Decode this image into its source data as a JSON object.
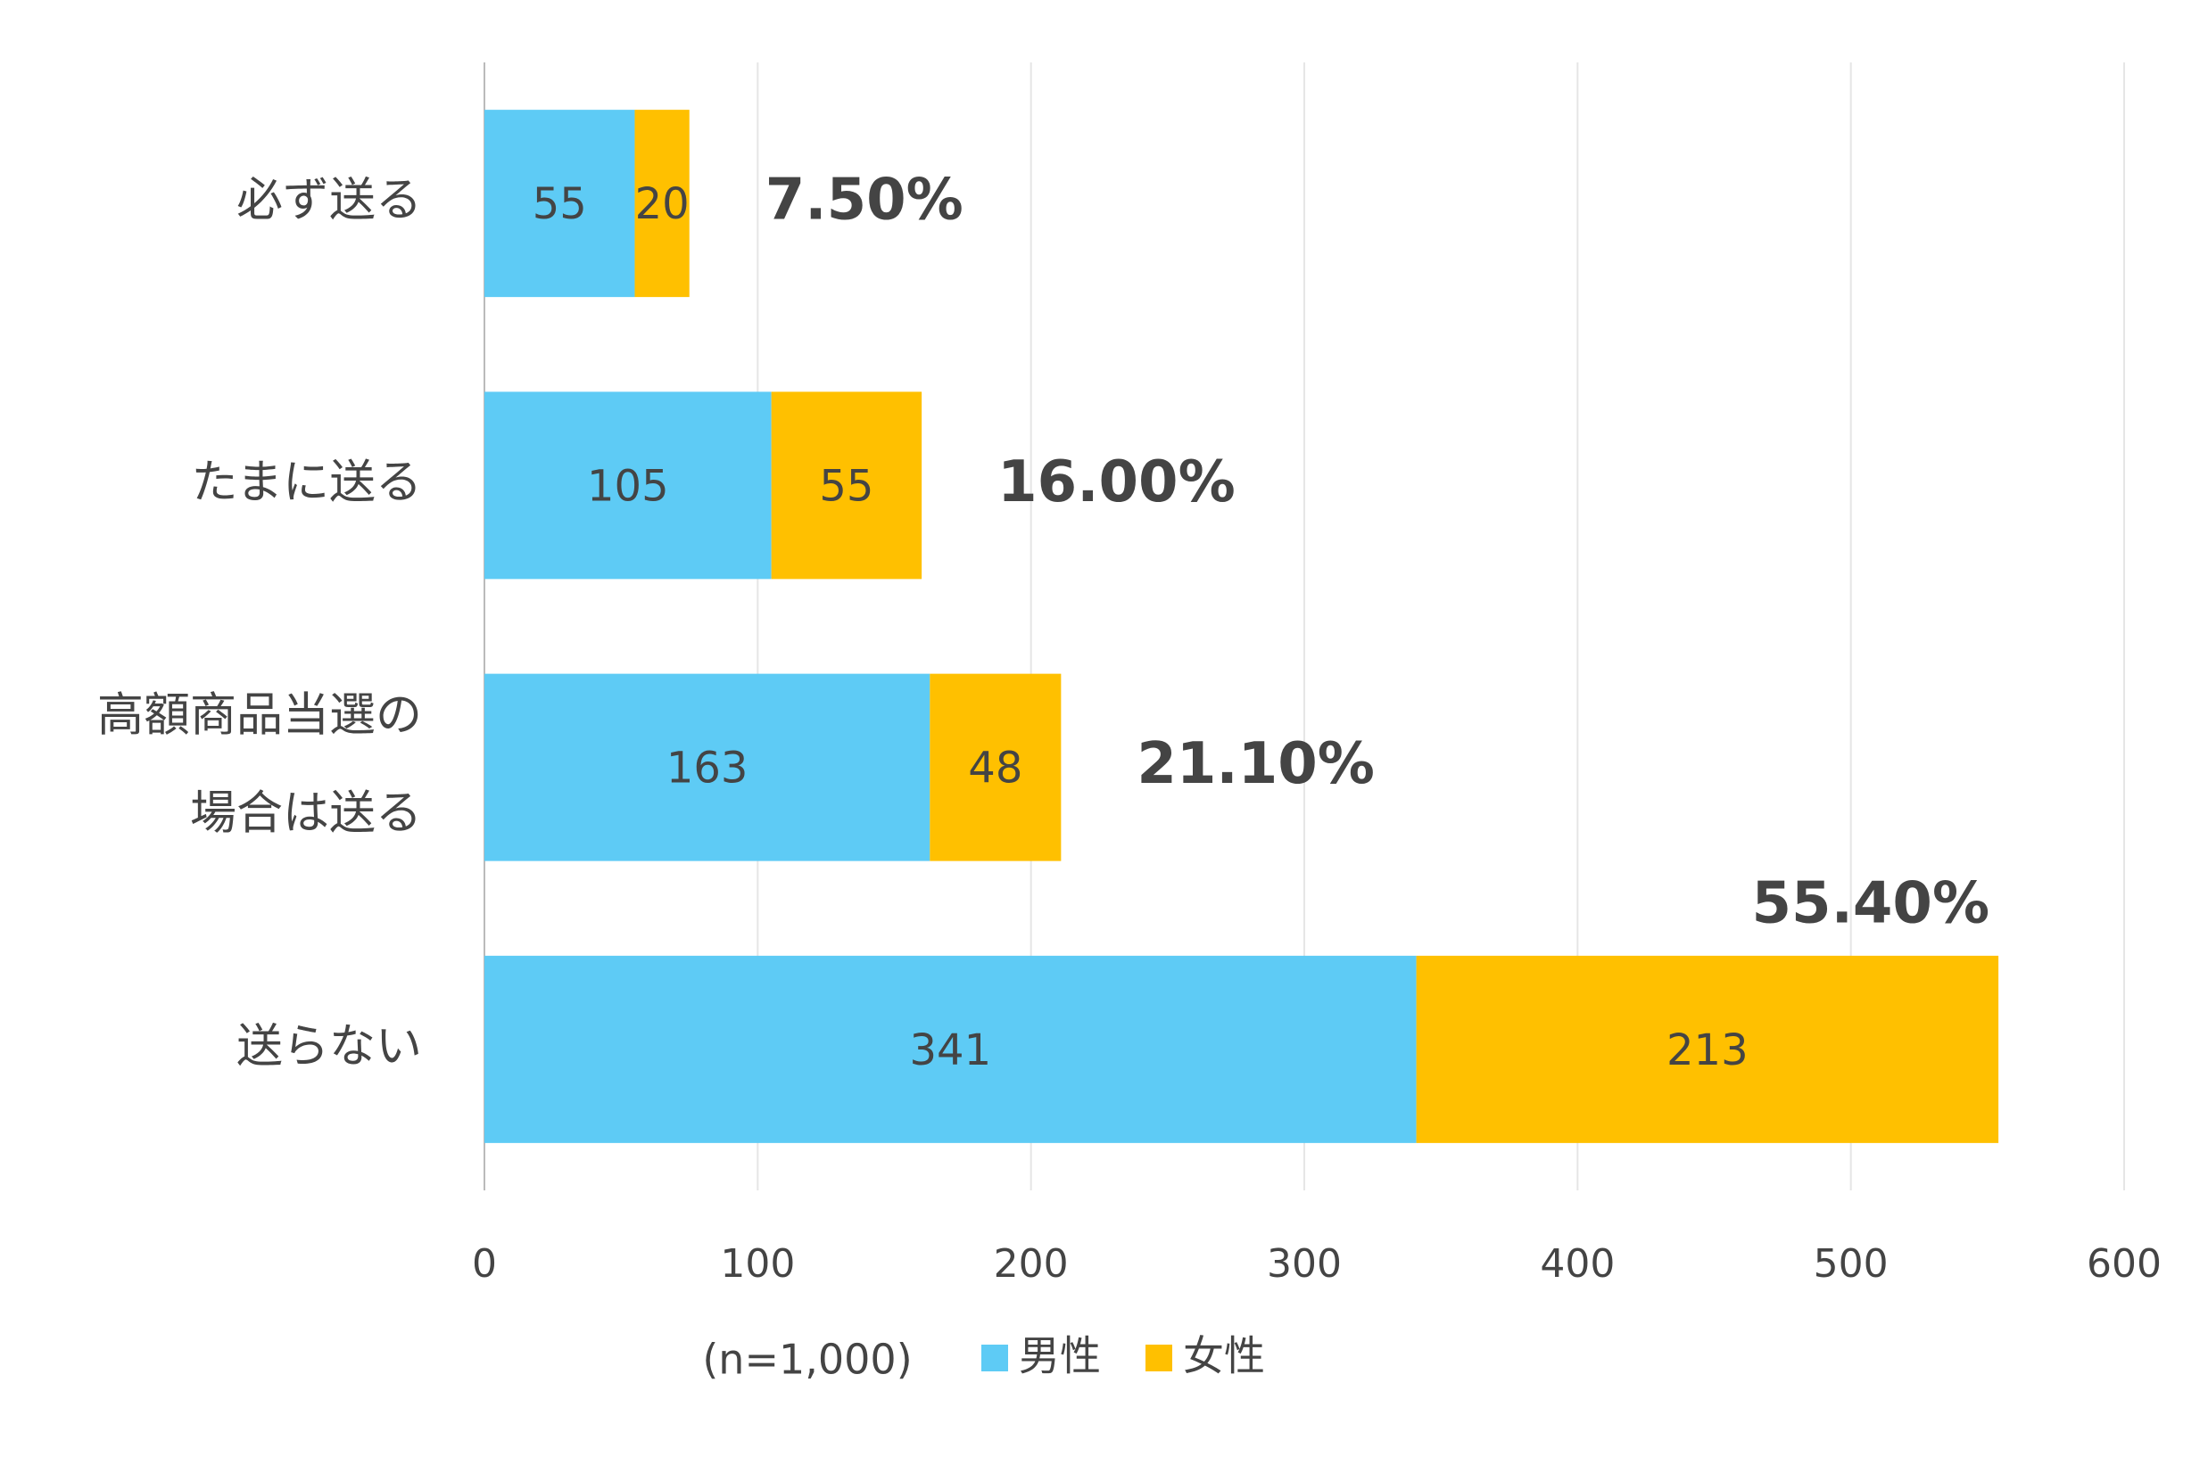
{
  "chart_data": {
    "type": "stacked_barh",
    "categories": [
      "必ず送る",
      "たまに送る",
      "高額商品当選の\n場合は送る",
      "送らない"
    ],
    "series": [
      {
        "name": "男性",
        "color": "#5ecbf5",
        "values": [
          55,
          105,
          163,
          341
        ]
      },
      {
        "name": "女性",
        "color": "#ffc000",
        "values": [
          20,
          55,
          48,
          213
        ]
      }
    ],
    "share_labels": [
      "7.50%",
      "16.00%",
      "21.10%",
      "55.40%"
    ],
    "sample_note": "(n=1,000)",
    "xlim": [
      0,
      600
    ],
    "xticks": [
      0,
      100,
      200,
      300,
      400,
      500,
      600
    ],
    "grid": true,
    "legend": "bottom"
  }
}
